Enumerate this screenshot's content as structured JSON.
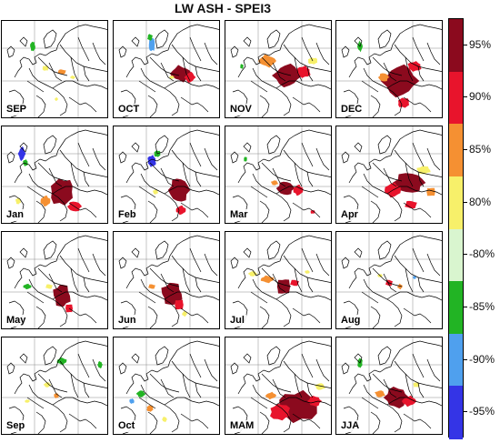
{
  "title": "LW ASH - SPEI3",
  "colorbar": {
    "segments": [
      {
        "color": "#8b0a1e"
      },
      {
        "color": "#e8142c"
      },
      {
        "color": "#f59032"
      },
      {
        "color": "#f7f06a"
      },
      {
        "color": "#d9f5cf"
      },
      {
        "color": "#22b424"
      },
      {
        "color": "#4fa0ee"
      },
      {
        "color": "#3434e6"
      }
    ],
    "labels": [
      "95%",
      "90%",
      "85%",
      "80%",
      "-80%",
      "-85%",
      "-90%",
      "-95%"
    ]
  },
  "panels": [
    {
      "label": "SEP"
    },
    {
      "label": "OCT"
    },
    {
      "label": "NOV"
    },
    {
      "label": "DEC"
    },
    {
      "label": "Jan"
    },
    {
      "label": "Feb"
    },
    {
      "label": "Mar"
    },
    {
      "label": "Apr"
    },
    {
      "label": "May"
    },
    {
      "label": "Jun"
    },
    {
      "label": "Jul"
    },
    {
      "label": "Aug"
    },
    {
      "label": "Sep"
    },
    {
      "label": "Oct"
    },
    {
      "label": "MAM"
    },
    {
      "label": "JJA"
    }
  ]
}
